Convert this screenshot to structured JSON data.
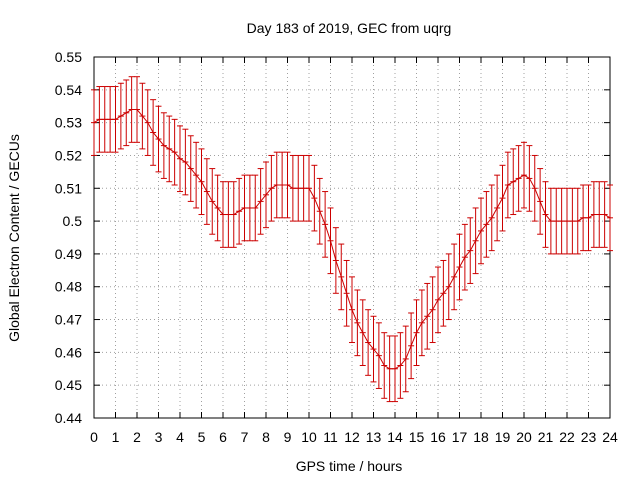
{
  "chart_data": {
    "type": "line",
    "title": "Day 183 of 2019, GEC from uqrg",
    "xlabel": "GPS time / hours",
    "ylabel": "Global Electron Content / GECUs",
    "xlim": [
      0,
      24
    ],
    "ylim": [
      0.44,
      0.55
    ],
    "xticks": [
      "0",
      "1",
      "2",
      "3",
      "4",
      "5",
      "6",
      "7",
      "8",
      "9",
      "10",
      "11",
      "12",
      "13",
      "14",
      "15",
      "16",
      "17",
      "18",
      "19",
      "20",
      "21",
      "22",
      "23",
      "24"
    ],
    "yticks": [
      "0.44",
      "0.45",
      "0.46",
      "0.47",
      "0.48",
      "0.49",
      "0.5",
      "0.51",
      "0.52",
      "0.53",
      "0.54",
      "0.55"
    ],
    "grid": true,
    "series": [
      {
        "color": "#cc0000",
        "error_bar": 0.01,
        "x": [
          0,
          0.25,
          0.5,
          0.75,
          1,
          1.25,
          1.5,
          1.75,
          2,
          2.25,
          2.5,
          2.75,
          3,
          3.25,
          3.5,
          3.75,
          4,
          4.25,
          4.5,
          4.75,
          5,
          5.25,
          5.5,
          5.75,
          6,
          6.25,
          6.5,
          6.75,
          7,
          7.25,
          7.5,
          7.75,
          8,
          8.25,
          8.5,
          8.75,
          9,
          9.25,
          9.5,
          9.75,
          10,
          10.25,
          10.5,
          10.75,
          11,
          11.25,
          11.5,
          11.75,
          12,
          12.25,
          12.5,
          12.75,
          13,
          13.25,
          13.5,
          13.75,
          14,
          14.25,
          14.5,
          14.75,
          15,
          15.25,
          15.5,
          15.75,
          16,
          16.25,
          16.5,
          16.75,
          17,
          17.25,
          17.5,
          17.75,
          18,
          18.25,
          18.5,
          18.75,
          19,
          19.25,
          19.5,
          19.75,
          20,
          20.25,
          20.5,
          20.75,
          21,
          21.25,
          21.5,
          21.75,
          22,
          22.25,
          22.5,
          22.75,
          23,
          23.25,
          23.5,
          23.75,
          24
        ],
        "y": [
          0.53,
          0.531,
          0.531,
          0.531,
          0.531,
          0.532,
          0.533,
          0.534,
          0.534,
          0.532,
          0.53,
          0.527,
          0.525,
          0.523,
          0.522,
          0.521,
          0.519,
          0.518,
          0.516,
          0.514,
          0.512,
          0.509,
          0.506,
          0.504,
          0.502,
          0.502,
          0.502,
          0.503,
          0.504,
          0.504,
          0.504,
          0.506,
          0.508,
          0.51,
          0.511,
          0.511,
          0.511,
          0.51,
          0.51,
          0.51,
          0.51,
          0.507,
          0.503,
          0.499,
          0.494,
          0.488,
          0.483,
          0.478,
          0.473,
          0.469,
          0.466,
          0.463,
          0.461,
          0.459,
          0.456,
          0.455,
          0.455,
          0.456,
          0.458,
          0.462,
          0.466,
          0.469,
          0.471,
          0.473,
          0.476,
          0.478,
          0.48,
          0.483,
          0.486,
          0.489,
          0.491,
          0.494,
          0.497,
          0.499,
          0.501,
          0.504,
          0.507,
          0.511,
          0.512,
          0.513,
          0.514,
          0.513,
          0.51,
          0.506,
          0.502,
          0.5,
          0.5,
          0.5,
          0.5,
          0.5,
          0.5,
          0.501,
          0.501,
          0.502,
          0.502,
          0.502,
          0.501
        ]
      }
    ]
  }
}
